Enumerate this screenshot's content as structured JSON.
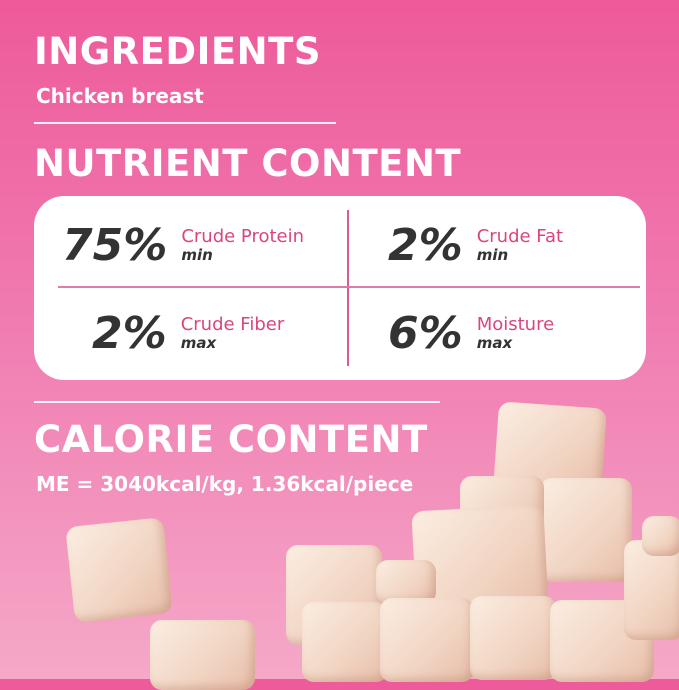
{
  "ingredients": {
    "title": "INGREDIENTS",
    "value": "Chicken breast"
  },
  "nutrient": {
    "title": "NUTRIENT CONTENT",
    "items": [
      {
        "percent": "75%",
        "name": "Crude Protein",
        "qualifier": "min"
      },
      {
        "percent": "2%",
        "name": "Crude Fat",
        "qualifier": "min"
      },
      {
        "percent": "2%",
        "name": "Crude Fiber",
        "qualifier": "max"
      },
      {
        "percent": "6%",
        "name": "Moisture",
        "qualifier": "max"
      }
    ]
  },
  "calorie": {
    "title": "CALORIE CONTENT",
    "value": "ME = 3040kcal/kg, 1.36kcal/piece"
  },
  "colors": {
    "background": "#ee5a9a",
    "accent": "#d9467f",
    "number": "#333333"
  }
}
